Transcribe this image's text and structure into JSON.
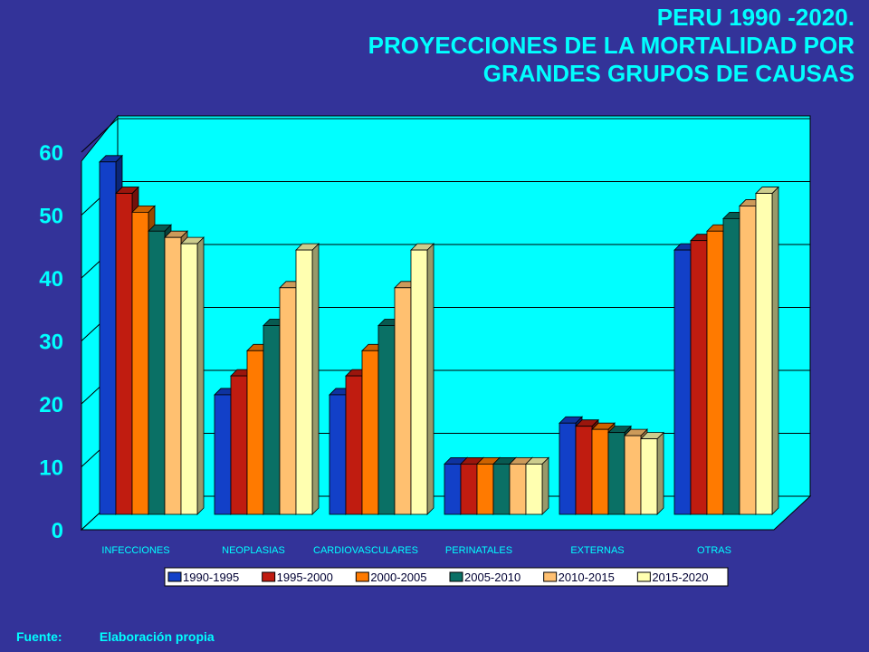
{
  "title_lines": [
    "PERU 1990 -2020.",
    "PROYECCIONES DE LA MORTALIDAD POR",
    "GRANDES GRUPOS DE CAUSAS"
  ],
  "footer": {
    "label": "Fuente:",
    "value": "Elaboración propia"
  },
  "colors": {
    "background": "#333399",
    "plot_back": "#00ffff",
    "text_accent": "#00ffff",
    "series": [
      "#1240c8",
      "#c01c10",
      "#ff7a00",
      "#0a7065",
      "#ffc070",
      "#ffffb0"
    ]
  },
  "chart_data": {
    "type": "bar",
    "title": "PERU 1990 -2020. PROYECCIONES DE LA MORTALIDAD POR GRANDES GRUPOS DE CAUSAS",
    "categories": [
      "INFECCIONES",
      "NEOPLASIAS",
      "CARDIOVASCULARES",
      "PERINATALES",
      "EXTERNAS",
      "OTRAS"
    ],
    "series": [
      {
        "name": "1990-1995",
        "values": [
          56,
          19,
          19,
          8,
          14.5,
          42
        ]
      },
      {
        "name": "1995-2000",
        "values": [
          51,
          22,
          22,
          8,
          14,
          43.5
        ]
      },
      {
        "name": "2000-2005",
        "values": [
          48,
          26,
          26,
          8,
          13.5,
          45
        ]
      },
      {
        "name": "2005-2010",
        "values": [
          45,
          30,
          30,
          8,
          13,
          47
        ]
      },
      {
        "name": "2010-2015",
        "values": [
          44,
          36,
          36,
          8,
          12.5,
          49
        ]
      },
      {
        "name": "2015-2020",
        "values": [
          43,
          42,
          42,
          8,
          12,
          51
        ]
      }
    ],
    "yticks": [
      0,
      10,
      20,
      30,
      40,
      50,
      60
    ],
    "ylim": [
      0,
      60
    ],
    "grid": true,
    "three_d": true,
    "legend_position": "bottom"
  }
}
